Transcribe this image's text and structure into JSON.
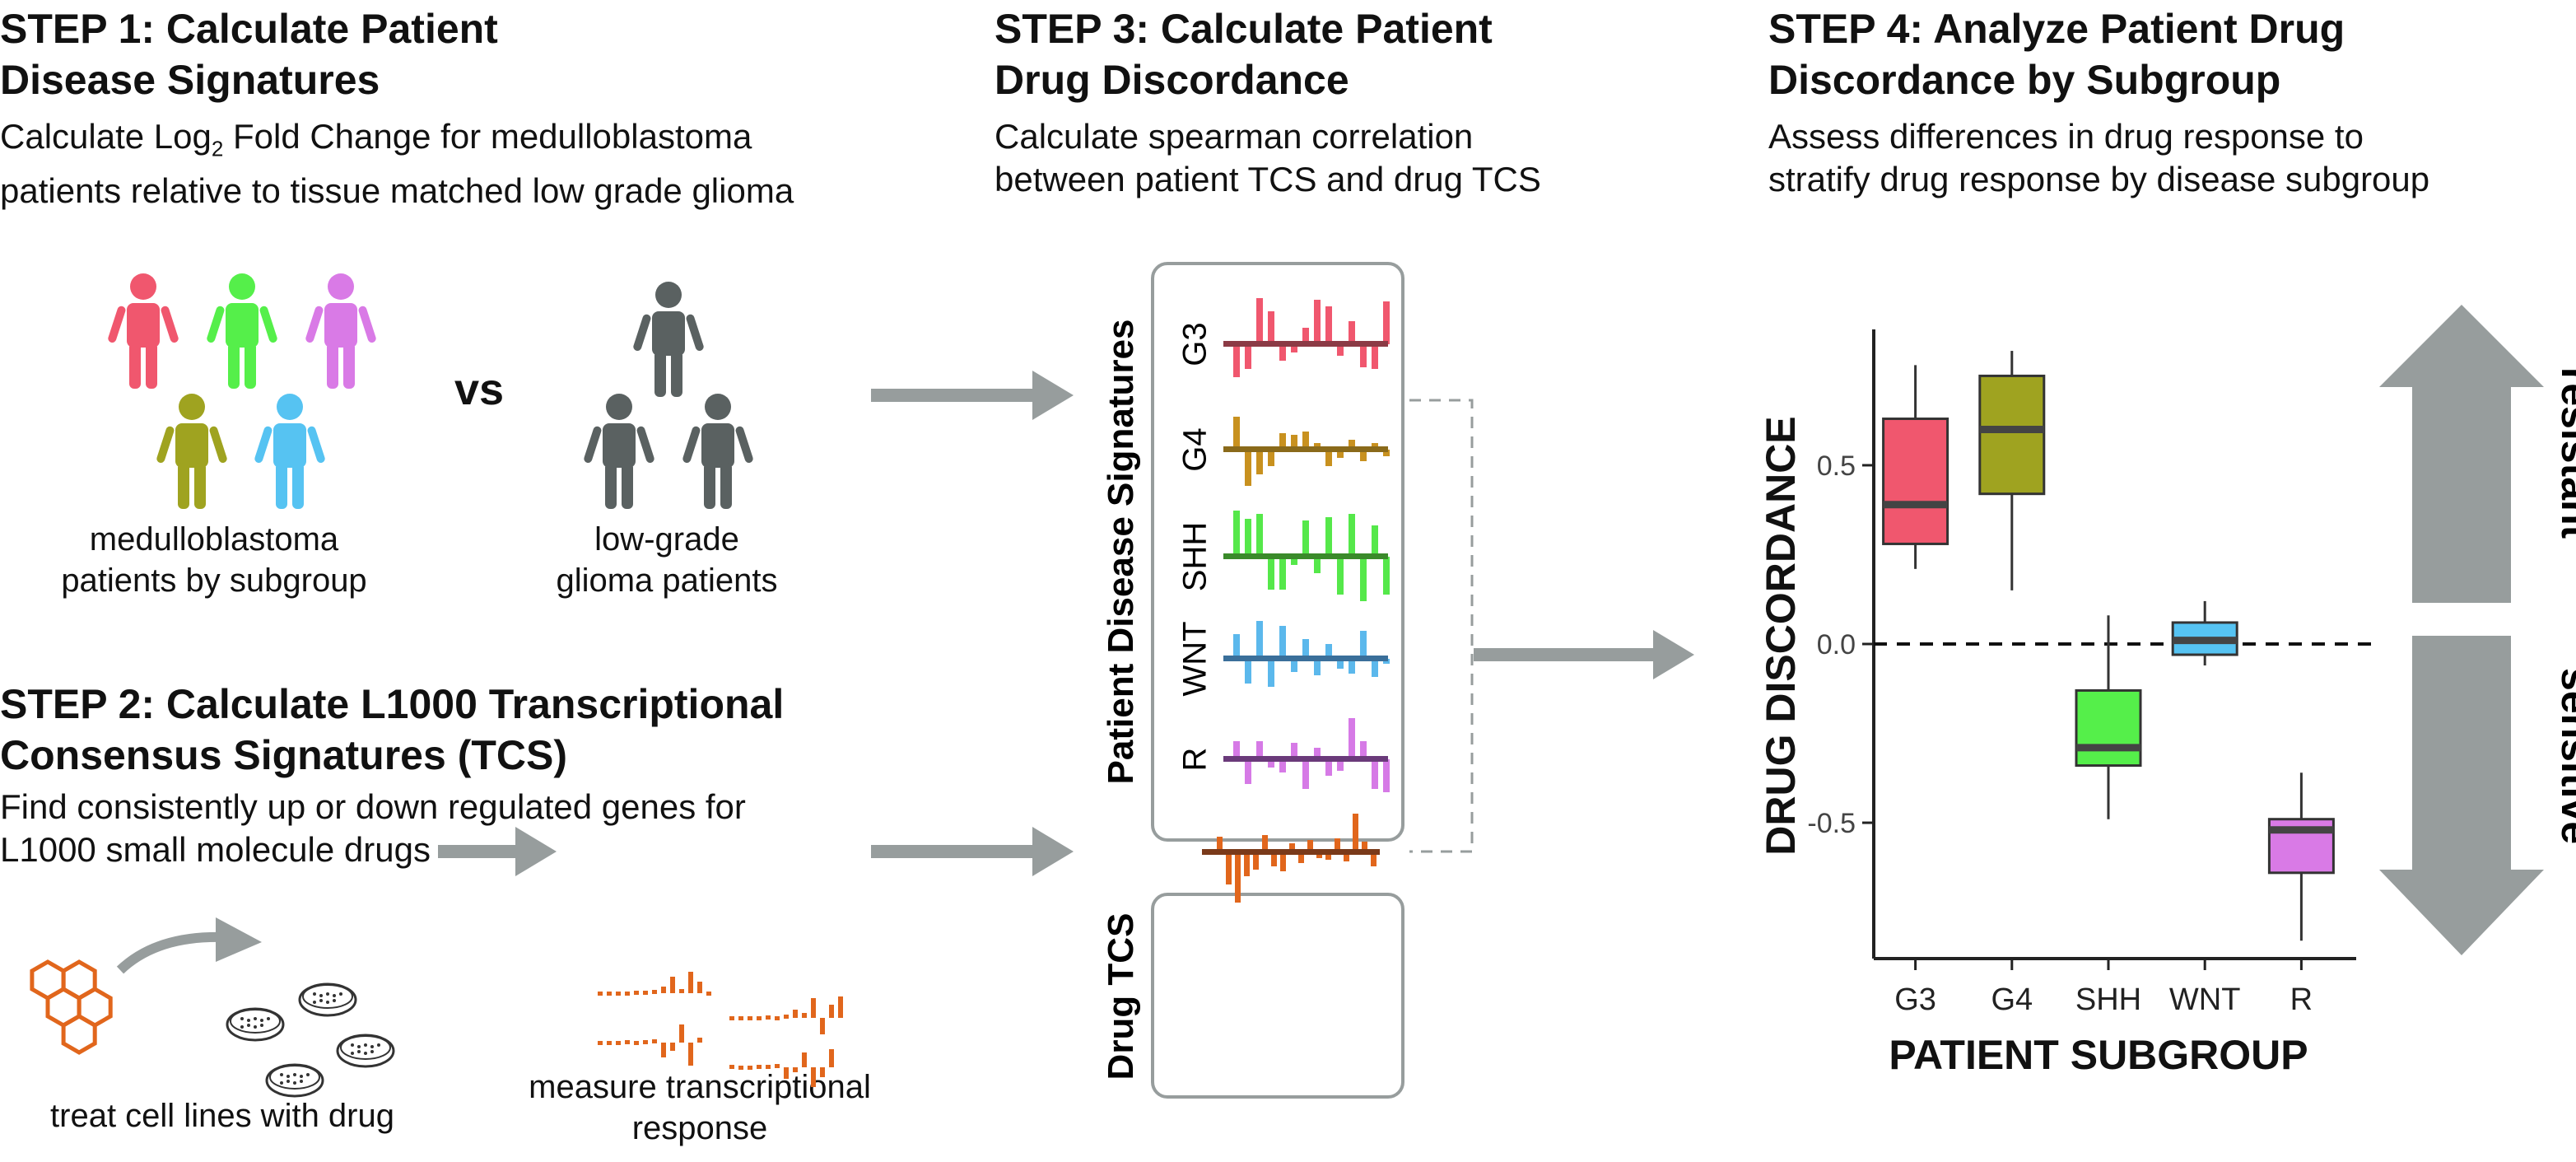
{
  "step1": {
    "title_line1": "STEP 1: Calculate Patient",
    "title_line2": "Disease Signatures",
    "desc_pre": "Calculate Log",
    "desc_sub": "2",
    "desc_post": " Fold Change for medulloblastoma",
    "desc_line2": "patients relative to tissue matched low grade glioma",
    "vs": "vs",
    "group1_label_line1": "medulloblastoma",
    "group1_label_line2": "patients by subgroup",
    "group2_label_line1": "low-grade",
    "group2_label_line2": "glioma patients"
  },
  "step2": {
    "title_line1": "STEP 2: Calculate L1000 Transcriptional",
    "title_line2": "Consensus Signatures (TCS)",
    "desc_line1": "Find consistently up or down regulated genes for",
    "desc_line2": "L1000 small molecule drugs",
    "treat_label": "treat cell lines with drug",
    "measure_line1": "measure transcriptional",
    "measure_line2": "response"
  },
  "step3": {
    "title_line1": "STEP 3: Calculate Patient",
    "title_line2": "Drug Discordance",
    "desc_line1": "Calculate spearman correlation",
    "desc_line2": "between patient TCS and drug TCS",
    "signatures_label": "Patient Disease Signatures",
    "drug_label": "Drug TCS",
    "subgroups": [
      "G3",
      "G4",
      "SHH",
      "WNT",
      "R"
    ]
  },
  "step4": {
    "title_line1": "STEP 4: Analyze Patient Drug",
    "title_line2": "Discordance by Subgroup",
    "desc_line1": "Assess differences in drug response to",
    "desc_line2": "stratify drug response by disease subgroup",
    "resistant": "resistant",
    "sensitive": "sensitive"
  },
  "colors": {
    "G3": "#f0576e",
    "G4": "#9fa320",
    "SHH": "#55ef4a",
    "WNT": "#56c3f2",
    "R": "#d97ae6",
    "G3_signature": "#f0576e",
    "G4_signature": "#c8911f",
    "SHH_signature": "#55e84a",
    "WNT_signature": "#5bb8ec",
    "R_signature": "#d67ae6",
    "G3_axis": "#8b3a45",
    "G4_axis": "#8a6a1a",
    "SHH_axis": "#3a8a2a",
    "WNT_axis": "#3a6f9a",
    "R_axis": "#6a3a7a",
    "drug": "#e1661c",
    "drug_axis": "#7a3a1a",
    "glioma": "#5a6161",
    "arrow": "#979d9d",
    "box_border": "#979d9d"
  },
  "chart_data": {
    "type": "box",
    "xlabel": "PATIENT SUBGROUP",
    "ylabel": "DRUG DISCORDANCE",
    "categories": [
      "G3",
      "G4",
      "SHH",
      "WNT",
      "R"
    ],
    "y_ticks": [
      -0.5,
      0.0,
      0.5
    ],
    "y_tick_labels": [
      "-0.5",
      "0.0",
      "0.5"
    ],
    "ylim": [
      -0.88,
      0.88
    ],
    "reference_line": 0.0,
    "boxes": [
      {
        "name": "G3",
        "min": 0.21,
        "q1": 0.28,
        "median": 0.39,
        "q3": 0.63,
        "max": 0.78
      },
      {
        "name": "G4",
        "min": 0.15,
        "q1": 0.42,
        "median": 0.6,
        "q3": 0.75,
        "max": 0.82
      },
      {
        "name": "SHH",
        "min": -0.49,
        "q1": -0.34,
        "median": -0.29,
        "q3": -0.13,
        "max": 0.08
      },
      {
        "name": "WNT",
        "min": -0.06,
        "q1": -0.03,
        "median": 0.01,
        "q3": 0.06,
        "max": 0.12
      },
      {
        "name": "R",
        "min": -0.83,
        "q1": -0.64,
        "median": -0.52,
        "q3": -0.49,
        "max": -0.36
      }
    ]
  }
}
